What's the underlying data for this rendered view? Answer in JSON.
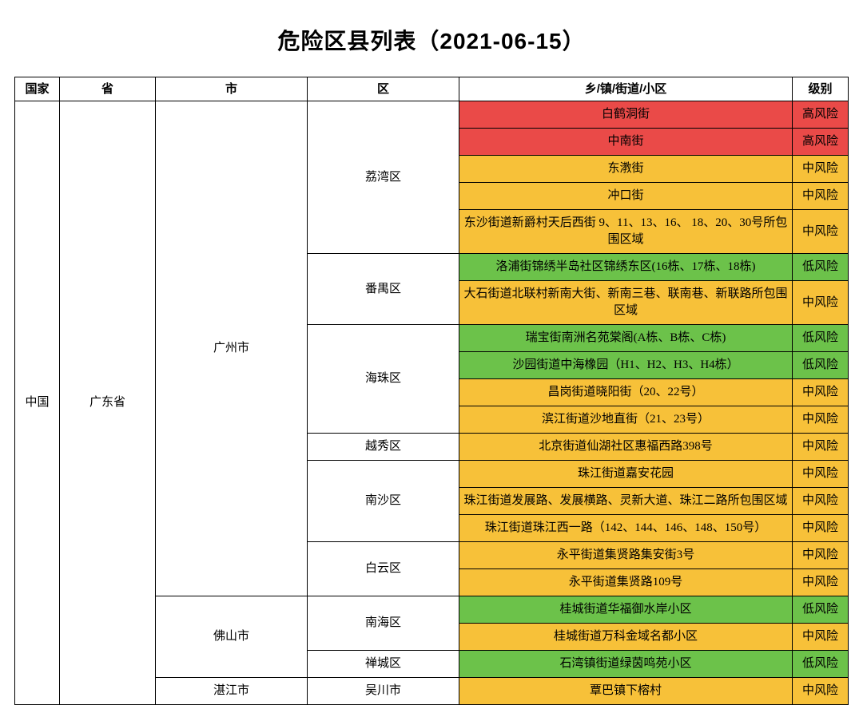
{
  "title": "危险区县列表（2021-06-15）",
  "colors": {
    "high": "#ea4a48",
    "medium": "#f7c139",
    "low": "#6cc24a",
    "border": "#000000",
    "bg": "#ffffff"
  },
  "headers": {
    "country": "国家",
    "province": "省",
    "city": "市",
    "district": "区",
    "area": "乡/镇/街道/小区",
    "level": "级别"
  },
  "levels": {
    "high": "高风险",
    "medium": "中风险",
    "low": "低风险"
  },
  "country": "中国",
  "province": "广东省",
  "cities": {
    "guangzhou": "广州市",
    "foshan": "佛山市",
    "zhanjiang": "湛江市"
  },
  "districts": {
    "liwan": "荔湾区",
    "panyu": "番禺区",
    "haizhu": "海珠区",
    "yuexiu": "越秀区",
    "nansha": "南沙区",
    "baiyun": "白云区",
    "nanhai": "南海区",
    "chancheng": "禅城区",
    "wuchuan": "吴川市"
  },
  "rows": {
    "r1": "白鹤洞街",
    "r2": "中南街",
    "r3": "东漖街",
    "r4": "冲口街",
    "r5": "东沙街道新爵村天后西街 9、11、13、16、 18、20、30号所包围区域",
    "r6": "洛浦街锦绣半岛社区锦绣东区(16栋、17栋、18栋)",
    "r7": "大石街道北联村新南大街、新南三巷、联南巷、新联路所包围区域",
    "r8": "瑞宝街南洲名苑棠阁(A栋、B栋、C栋)",
    "r9": "沙园街道中海橡园（H1、H2、H3、H4栋）",
    "r10": "昌岗街道晓阳街（20、22号）",
    "r11": "滨江街道沙地直街（21、23号）",
    "r12": "北京街道仙湖社区惠福西路398号",
    "r13": "珠江街道嘉安花园",
    "r14": "珠江街道发展路、发展横路、灵新大道、珠江二路所包围区域",
    "r15": "珠江街道珠江西一路（142、144、146、148、150号）",
    "r16": "永平街道集贤路集安街3号",
    "r17": "永平街道集贤路109号",
    "r18": "桂城街道华福御水岸小区",
    "r19": "桂城街道万科金域名都小区",
    "r20": "石湾镇街道绿茵鸣苑小区",
    "r21": "覃巴镇下榕村"
  }
}
